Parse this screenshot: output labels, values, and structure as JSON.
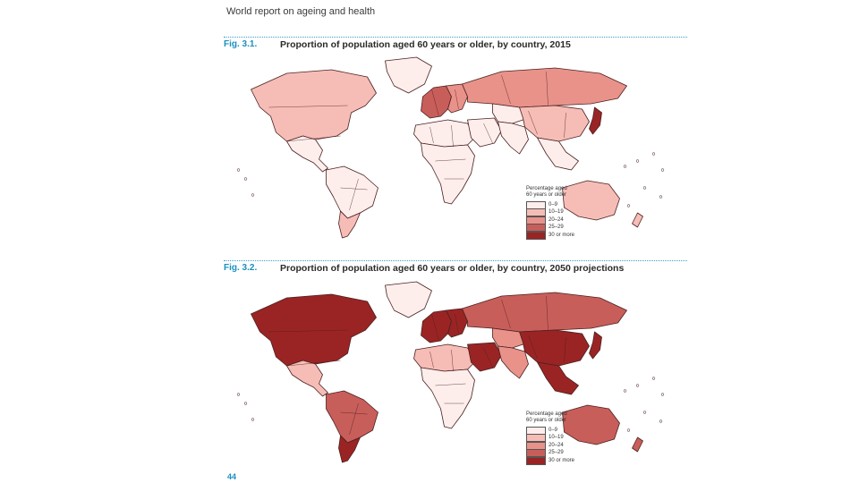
{
  "header": {
    "title": "World report on ageing and health"
  },
  "colors": {
    "c0": "#fdeeec",
    "c1": "#f6bdb6",
    "c2": "#e9928a",
    "c3": "#c85e5a",
    "c4": "#9a2424",
    "accent": "#1a8fbf"
  },
  "legend": {
    "title_line1": "Percentage aged",
    "title_line2": "60 years or older",
    "items": [
      "0–9",
      "10–19",
      "20–24",
      "25–29",
      "30 or more"
    ]
  },
  "figures": [
    {
      "label": "Fig. 3.1.",
      "title": "Proportion of population aged 60 years or older, by country, 2015",
      "regions": {
        "north_america": 1,
        "greenland": 0,
        "central_america": 0,
        "south_america": 0,
        "southern_cone": 1,
        "western_europe": 3,
        "eastern_europe": 2,
        "russia": 2,
        "north_africa": 0,
        "sub_saharan_africa": 0,
        "middle_east": 0,
        "central_asia": 0,
        "china": 1,
        "south_asia": 0,
        "southeast_asia": 0,
        "japan": 4,
        "australia": 1,
        "new_zealand": 1
      }
    },
    {
      "label": "Fig. 3.2.",
      "title": "Proportion of population aged 60 years or older, by country, 2050 projections",
      "regions": {
        "north_america": 4,
        "greenland": 0,
        "central_america": 1,
        "south_america": 3,
        "southern_cone": 4,
        "western_europe": 4,
        "eastern_europe": 4,
        "russia": 3,
        "north_africa": 1,
        "sub_saharan_africa": 0,
        "middle_east": 4,
        "central_asia": 2,
        "china": 4,
        "south_asia": 2,
        "southeast_asia": 4,
        "japan": 4,
        "australia": 3,
        "new_zealand": 3
      }
    }
  ],
  "page_number": "44"
}
